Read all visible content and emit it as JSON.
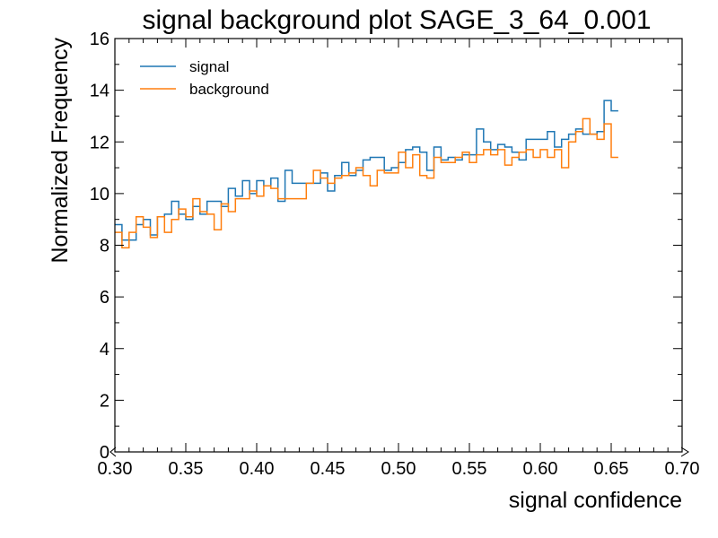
{
  "chart_data": {
    "type": "histogram-step",
    "title": "signal background plot SAGE_3_64_0.001",
    "xlabel": "signal confidence",
    "ylabel": "Normalized Frequency",
    "xlim": [
      0.3,
      0.7
    ],
    "ylim": [
      0,
      16
    ],
    "xticks": [
      "0.30",
      "0.35",
      "0.40",
      "0.45",
      "0.50",
      "0.55",
      "0.60",
      "0.65",
      "0.70"
    ],
    "yticks": [
      "0",
      "2",
      "4",
      "6",
      "8",
      "10",
      "12",
      "14",
      "16"
    ],
    "grid": false,
    "legend_position": "top-left",
    "bin_width": 0.005,
    "series": [
      {
        "name": "signal",
        "color": "#1f77b4",
        "values": [
          8.8,
          8.2,
          8.2,
          8.8,
          9.0,
          8.4,
          9.1,
          9.2,
          9.7,
          9.2,
          9.0,
          9.5,
          9.2,
          9.7,
          9.7,
          9.5,
          10.2,
          9.9,
          10.5,
          10.0,
          10.5,
          10.3,
          10.6,
          9.7,
          10.9,
          10.4,
          10.4,
          10.4,
          10.4,
          10.8,
          10.1,
          10.7,
          11.2,
          10.7,
          10.9,
          11.3,
          11.4,
          11.4,
          10.9,
          11.0,
          11.2,
          11.7,
          11.8,
          11.6,
          10.9,
          11.8,
          11.3,
          11.4,
          11.3,
          11.5,
          11.5,
          12.5,
          12.0,
          11.7,
          11.9,
          11.8,
          11.6,
          11.3,
          12.1,
          12.1,
          12.1,
          12.4,
          11.8,
          12.1,
          12.3,
          12.5,
          12.3,
          12.3,
          12.4,
          13.6,
          13.2
        ]
      },
      {
        "name": "background",
        "color": "#ff7f0e",
        "values": [
          8.5,
          7.9,
          8.5,
          9.1,
          8.7,
          8.3,
          9.1,
          8.5,
          9.0,
          9.4,
          9.1,
          9.8,
          9.3,
          9.2,
          8.6,
          9.6,
          9.3,
          9.8,
          9.8,
          10.1,
          9.9,
          10.3,
          10.2,
          9.8,
          9.8,
          9.8,
          9.8,
          10.4,
          10.9,
          10.6,
          10.4,
          10.6,
          10.7,
          10.8,
          11.0,
          10.7,
          10.3,
          10.9,
          10.8,
          10.8,
          11.6,
          11.0,
          11.5,
          10.7,
          10.6,
          11.4,
          11.2,
          11.2,
          11.4,
          11.6,
          11.2,
          11.5,
          11.7,
          11.5,
          11.7,
          11.1,
          11.4,
          11.6,
          11.7,
          11.4,
          11.7,
          11.4,
          11.7,
          11.0,
          12.0,
          12.4,
          12.9,
          12.3,
          12.1,
          12.7,
          11.4
        ]
      }
    ]
  }
}
